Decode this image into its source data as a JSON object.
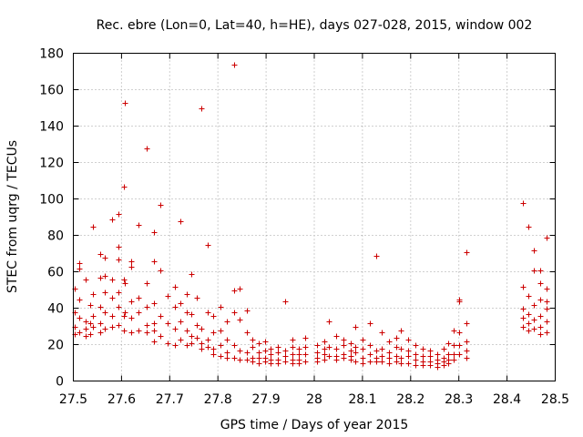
{
  "chart_data": {
    "type": "scatter",
    "title": "Rec. ebre (Lon=0, Lat=40, h=HE), days 027-028, 2015, window 002",
    "xlabel": "GPS time / Days of year 2015",
    "ylabel": "STEC from uqrg / TECUs",
    "xlim": [
      27.5,
      28.5
    ],
    "ylim": [
      0,
      180
    ],
    "xticks": [
      27.5,
      27.6,
      27.7,
      27.8,
      27.9,
      28.0,
      28.1,
      28.2,
      28.3,
      28.4,
      28.5
    ],
    "xtick_labels": [
      "27.5",
      "27.6",
      "27.7",
      "27.8",
      "27.9",
      "28",
      "28.1",
      "28.2",
      "28.3",
      "28.4",
      "28.5"
    ],
    "yticks": [
      0,
      20,
      40,
      60,
      80,
      100,
      120,
      140,
      160,
      180
    ],
    "ytick_labels": [
      "0",
      "20",
      "40",
      "60",
      "80",
      "100",
      "120",
      "140",
      "160",
      "180"
    ],
    "grid": true,
    "marker": "+",
    "color": "#cc0000",
    "series": [
      {
        "name": "STEC",
        "points": [
          [
            27.503,
            51
          ],
          [
            27.503,
            38
          ],
          [
            27.503,
            30
          ],
          [
            27.503,
            26
          ],
          [
            27.513,
            65
          ],
          [
            27.513,
            62
          ],
          [
            27.513,
            45
          ],
          [
            27.513,
            35
          ],
          [
            27.513,
            27
          ],
          [
            27.525,
            56
          ],
          [
            27.525,
            33
          ],
          [
            27.525,
            29
          ],
          [
            27.525,
            25
          ],
          [
            27.535,
            42
          ],
          [
            27.535,
            32
          ],
          [
            27.535,
            26
          ],
          [
            27.541,
            85
          ],
          [
            27.541,
            48
          ],
          [
            27.541,
            36
          ],
          [
            27.541,
            30
          ],
          [
            27.555,
            70
          ],
          [
            27.555,
            57
          ],
          [
            27.555,
            41
          ],
          [
            27.555,
            32
          ],
          [
            27.555,
            27
          ],
          [
            27.566,
            68
          ],
          [
            27.566,
            58
          ],
          [
            27.566,
            49
          ],
          [
            27.566,
            38
          ],
          [
            27.566,
            29
          ],
          [
            27.58,
            89
          ],
          [
            27.58,
            56
          ],
          [
            27.58,
            46
          ],
          [
            27.58,
            36
          ],
          [
            27.58,
            30
          ],
          [
            27.594,
            92
          ],
          [
            27.594,
            74
          ],
          [
            27.594,
            67
          ],
          [
            27.594,
            49
          ],
          [
            27.594,
            41
          ],
          [
            27.594,
            31
          ],
          [
            27.604,
            107
          ],
          [
            27.604,
            56
          ],
          [
            27.604,
            36
          ],
          [
            27.604,
            28
          ],
          [
            27.606,
            153
          ],
          [
            27.606,
            54
          ],
          [
            27.606,
            38
          ],
          [
            27.62,
            66
          ],
          [
            27.62,
            63
          ],
          [
            27.62,
            44
          ],
          [
            27.62,
            35
          ],
          [
            27.62,
            27
          ],
          [
            27.635,
            86
          ],
          [
            27.635,
            46
          ],
          [
            27.635,
            38
          ],
          [
            27.635,
            28
          ],
          [
            27.652,
            128
          ],
          [
            27.652,
            54
          ],
          [
            27.652,
            41
          ],
          [
            27.652,
            31
          ],
          [
            27.652,
            27
          ],
          [
            27.668,
            82
          ],
          [
            27.668,
            66
          ],
          [
            27.668,
            43
          ],
          [
            27.668,
            32
          ],
          [
            27.668,
            28
          ],
          [
            27.668,
            22
          ],
          [
            27.68,
            97
          ],
          [
            27.68,
            61
          ],
          [
            27.68,
            36
          ],
          [
            27.68,
            25
          ],
          [
            27.695,
            47
          ],
          [
            27.695,
            32
          ],
          [
            27.695,
            21
          ],
          [
            27.71,
            52
          ],
          [
            27.71,
            41
          ],
          [
            27.71,
            29
          ],
          [
            27.71,
            20
          ],
          [
            27.722,
            88
          ],
          [
            27.722,
            43
          ],
          [
            27.722,
            33
          ],
          [
            27.722,
            23
          ],
          [
            27.735,
            48
          ],
          [
            27.735,
            38
          ],
          [
            27.735,
            28
          ],
          [
            27.735,
            20
          ],
          [
            27.745,
            59
          ],
          [
            27.745,
            37
          ],
          [
            27.745,
            25
          ],
          [
            27.745,
            21
          ],
          [
            27.757,
            46
          ],
          [
            27.757,
            31
          ],
          [
            27.757,
            24
          ],
          [
            27.765,
            150
          ],
          [
            27.765,
            29
          ],
          [
            27.765,
            21
          ],
          [
            27.765,
            18
          ],
          [
            27.778,
            75
          ],
          [
            27.778,
            38
          ],
          [
            27.778,
            23
          ],
          [
            27.778,
            19
          ],
          [
            27.79,
            36
          ],
          [
            27.79,
            27
          ],
          [
            27.79,
            18
          ],
          [
            27.79,
            15
          ],
          [
            27.805,
            41
          ],
          [
            27.805,
            28
          ],
          [
            27.805,
            20
          ],
          [
            27.805,
            14
          ],
          [
            27.818,
            33
          ],
          [
            27.818,
            23
          ],
          [
            27.818,
            16
          ],
          [
            27.818,
            13
          ],
          [
            27.834,
            174
          ],
          [
            27.834,
            50
          ],
          [
            27.834,
            38
          ],
          [
            27.834,
            20
          ],
          [
            27.834,
            13
          ],
          [
            27.845,
            51
          ],
          [
            27.845,
            34
          ],
          [
            27.845,
            17
          ],
          [
            27.845,
            12
          ],
          [
            27.86,
            39
          ],
          [
            27.86,
            27
          ],
          [
            27.86,
            16
          ],
          [
            27.86,
            12
          ],
          [
            27.872,
            23
          ],
          [
            27.872,
            19
          ],
          [
            27.872,
            13
          ],
          [
            27.872,
            11
          ],
          [
            27.885,
            21
          ],
          [
            27.885,
            16
          ],
          [
            27.885,
            13
          ],
          [
            27.885,
            10
          ],
          [
            27.897,
            22
          ],
          [
            27.897,
            17
          ],
          [
            27.897,
            13
          ],
          [
            27.897,
            11
          ],
          [
            27.91,
            18
          ],
          [
            27.91,
            15
          ],
          [
            27.91,
            12
          ],
          [
            27.91,
            10
          ],
          [
            27.925,
            19
          ],
          [
            27.925,
            16
          ],
          [
            27.925,
            12
          ],
          [
            27.925,
            10
          ],
          [
            27.94,
            44
          ],
          [
            27.94,
            17
          ],
          [
            27.94,
            14
          ],
          [
            27.94,
            11
          ],
          [
            27.955,
            23
          ],
          [
            27.955,
            19
          ],
          [
            27.955,
            15
          ],
          [
            27.955,
            12
          ],
          [
            27.955,
            10
          ],
          [
            27.968,
            18
          ],
          [
            27.968,
            15
          ],
          [
            27.968,
            12
          ],
          [
            27.968,
            10
          ],
          [
            27.982,
            24
          ],
          [
            27.982,
            19
          ],
          [
            27.982,
            15
          ],
          [
            27.982,
            11
          ],
          [
            28.005,
            20
          ],
          [
            28.005,
            16
          ],
          [
            28.005,
            13
          ],
          [
            28.005,
            11
          ],
          [
            28.02,
            22
          ],
          [
            28.02,
            18
          ],
          [
            28.02,
            15
          ],
          [
            28.02,
            12
          ],
          [
            28.03,
            33
          ],
          [
            28.03,
            19
          ],
          [
            28.03,
            14
          ],
          [
            28.045,
            25
          ],
          [
            28.045,
            18
          ],
          [
            28.045,
            14
          ],
          [
            28.045,
            12
          ],
          [
            28.06,
            23
          ],
          [
            28.06,
            20
          ],
          [
            28.06,
            15
          ],
          [
            28.06,
            13
          ],
          [
            28.075,
            21
          ],
          [
            28.075,
            17
          ],
          [
            28.075,
            14
          ],
          [
            28.075,
            12
          ],
          [
            28.085,
            30
          ],
          [
            28.085,
            19
          ],
          [
            28.085,
            16
          ],
          [
            28.085,
            11
          ],
          [
            28.1,
            23
          ],
          [
            28.1,
            18
          ],
          [
            28.1,
            13
          ],
          [
            28.1,
            10
          ],
          [
            28.115,
            32
          ],
          [
            28.115,
            20
          ],
          [
            28.115,
            15
          ],
          [
            28.115,
            11
          ],
          [
            28.128,
            69
          ],
          [
            28.128,
            17
          ],
          [
            28.128,
            13
          ],
          [
            28.128,
            11
          ],
          [
            28.14,
            27
          ],
          [
            28.14,
            18
          ],
          [
            28.14,
            14
          ],
          [
            28.14,
            11
          ],
          [
            28.155,
            22
          ],
          [
            28.155,
            16
          ],
          [
            28.155,
            13
          ],
          [
            28.155,
            10
          ],
          [
            28.17,
            24
          ],
          [
            28.17,
            19
          ],
          [
            28.17,
            14
          ],
          [
            28.17,
            11
          ],
          [
            28.18,
            28
          ],
          [
            28.18,
            18
          ],
          [
            28.18,
            13
          ],
          [
            28.18,
            10
          ],
          [
            28.195,
            23
          ],
          [
            28.195,
            17
          ],
          [
            28.195,
            14
          ],
          [
            28.195,
            10
          ],
          [
            28.21,
            20
          ],
          [
            28.21,
            15
          ],
          [
            28.21,
            12
          ],
          [
            28.21,
            9
          ],
          [
            28.225,
            18
          ],
          [
            28.225,
            14
          ],
          [
            28.225,
            11
          ],
          [
            28.225,
            9
          ],
          [
            28.24,
            17
          ],
          [
            28.24,
            14
          ],
          [
            28.24,
            11
          ],
          [
            28.24,
            9
          ],
          [
            28.255,
            15
          ],
          [
            28.255,
            12
          ],
          [
            28.255,
            10
          ],
          [
            28.255,
            8
          ],
          [
            28.268,
            18
          ],
          [
            28.268,
            13
          ],
          [
            28.268,
            11
          ],
          [
            28.268,
            9
          ],
          [
            28.278,
            21
          ],
          [
            28.278,
            15
          ],
          [
            28.278,
            12
          ],
          [
            28.278,
            10
          ],
          [
            28.29,
            28
          ],
          [
            28.29,
            20
          ],
          [
            28.29,
            15
          ],
          [
            28.29,
            12
          ],
          [
            28.3,
            45
          ],
          [
            28.3,
            44
          ],
          [
            28.3,
            27
          ],
          [
            28.3,
            20
          ],
          [
            28.3,
            15
          ],
          [
            28.315,
            71
          ],
          [
            28.315,
            32
          ],
          [
            28.315,
            22
          ],
          [
            28.315,
            17
          ],
          [
            28.315,
            13
          ],
          [
            28.432,
            98
          ],
          [
            28.432,
            52
          ],
          [
            28.432,
            40
          ],
          [
            28.432,
            35
          ],
          [
            28.432,
            30
          ],
          [
            28.445,
            85
          ],
          [
            28.445,
            47
          ],
          [
            28.445,
            37
          ],
          [
            28.445,
            32
          ],
          [
            28.445,
            28
          ],
          [
            28.455,
            72
          ],
          [
            28.455,
            61
          ],
          [
            28.455,
            42
          ],
          [
            28.455,
            34
          ],
          [
            28.455,
            29
          ],
          [
            28.468,
            61
          ],
          [
            28.468,
            54
          ],
          [
            28.468,
            45
          ],
          [
            28.468,
            36
          ],
          [
            28.468,
            30
          ],
          [
            28.468,
            26
          ],
          [
            28.482,
            79
          ],
          [
            28.482,
            51
          ],
          [
            28.482,
            44
          ],
          [
            28.482,
            40
          ],
          [
            28.482,
            33
          ],
          [
            28.482,
            27
          ]
        ]
      }
    ]
  }
}
